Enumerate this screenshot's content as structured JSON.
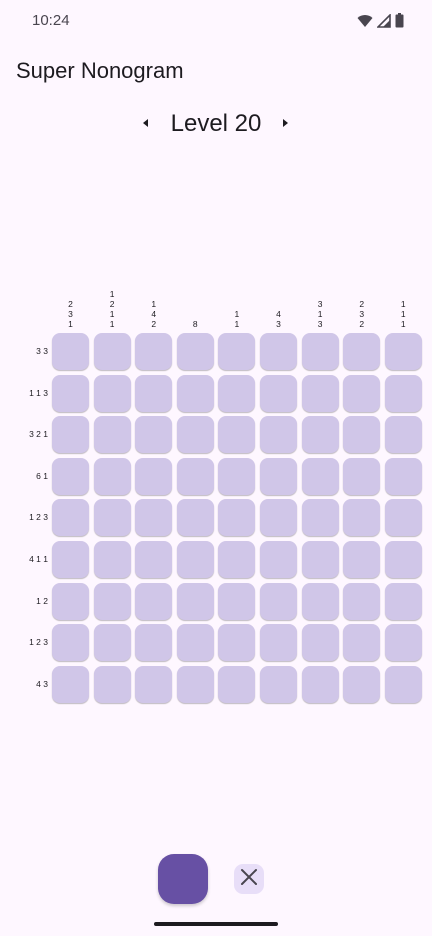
{
  "status": {
    "time": "10:24",
    "icons": [
      "wifi-icon",
      "cellular-signal-icon",
      "battery-icon"
    ]
  },
  "app": {
    "title": "Super Nonogram"
  },
  "level": {
    "label": "Level 20"
  },
  "puzzle": {
    "columns": 9,
    "rows": 9,
    "column_clues": [
      [
        "2",
        "3",
        "1"
      ],
      [
        "1",
        "2",
        "1",
        "1"
      ],
      [
        "1",
        "4",
        "2"
      ],
      [
        "8"
      ],
      [
        "1",
        "1"
      ],
      [
        "4",
        "3"
      ],
      [
        "3",
        "1",
        "3"
      ],
      [
        "2",
        "3",
        "2"
      ],
      [
        "1",
        "1",
        "1"
      ]
    ],
    "row_clues": [
      "3 3",
      "1 1 3",
      "3 2 1",
      "6 1",
      "1 2 3",
      "4 1 1",
      "1 2",
      "1 2 3",
      "4 3"
    ]
  },
  "tools": {
    "fill_mode": "selected",
    "cross_icon": "close-icon"
  },
  "colors": {
    "background": "#FEF7FF",
    "cell": "#D0C6E8",
    "primary": "#6750A4",
    "secondary_container": "#E8DEF8"
  }
}
